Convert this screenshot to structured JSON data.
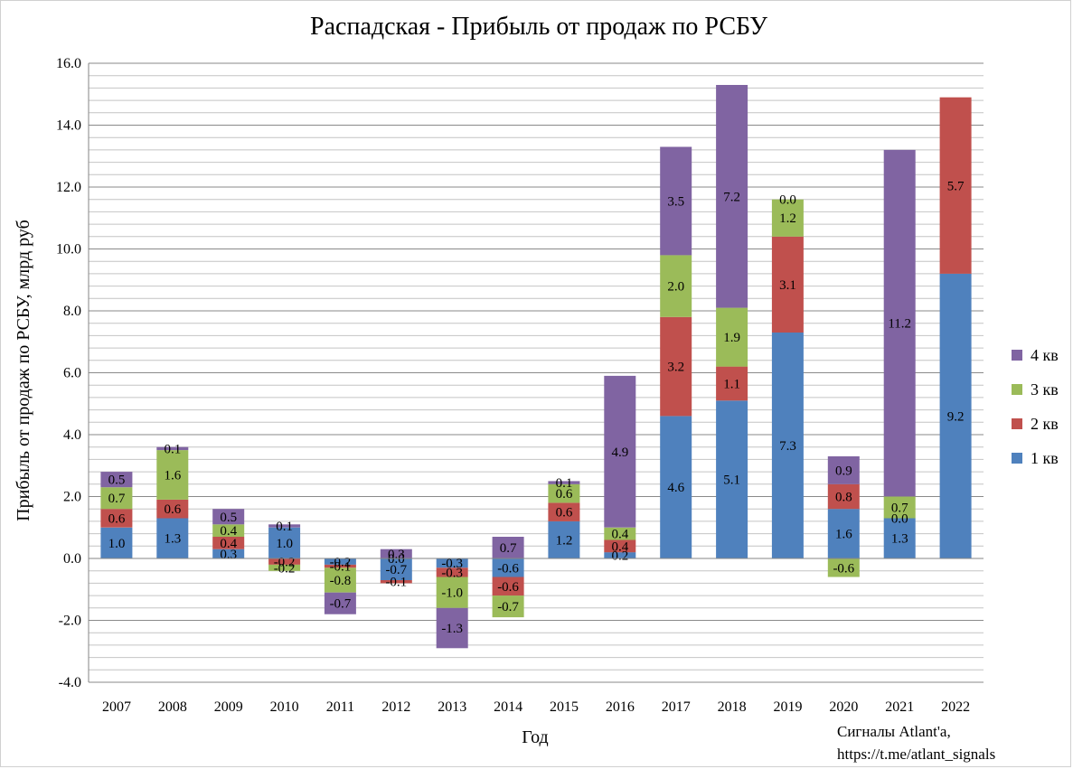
{
  "chart_data": {
    "type": "bar",
    "stacked": true,
    "title": "Распадская - Прибыль от продаж по РСБУ",
    "xlabel": "Год",
    "ylabel": "Прибыль от продаж по РСБУ, млрд руб",
    "ylim": [
      -4.0,
      16.0
    ],
    "y_major_ticks": [
      "-4.0",
      "-2.0",
      "0.0",
      "2.0",
      "4.0",
      "6.0",
      "8.0",
      "10.0",
      "12.0",
      "14.0",
      "16.0"
    ],
    "grid": true,
    "legend_position": "right",
    "categories": [
      "2007",
      "2008",
      "2009",
      "2010",
      "2011",
      "2012",
      "2013",
      "2014",
      "2015",
      "2016",
      "2017",
      "2018",
      "2019",
      "2020",
      "2021",
      "2022"
    ],
    "series": [
      {
        "name": "1 кв",
        "color": "#4f81bd",
        "values": [
          1.0,
          1.3,
          0.3,
          1.0,
          -0.2,
          -0.7,
          -0.3,
          -0.6,
          1.2,
          0.2,
          4.6,
          5.1,
          7.3,
          1.6,
          1.3,
          9.2
        ],
        "labels": [
          "1.0",
          "1.3",
          "0.3",
          "1.0",
          "-0.2",
          "-0.7",
          "-0.3",
          "-0.6",
          "1.2",
          "0.2",
          "4.6",
          "5.1",
          "7.3",
          "1.6",
          "1.3",
          "9.2"
        ]
      },
      {
        "name": "2 кв",
        "color": "#c0504d",
        "values": [
          0.6,
          0.6,
          0.4,
          -0.2,
          -0.1,
          -0.1,
          -0.3,
          -0.6,
          0.6,
          0.4,
          3.2,
          1.1,
          3.1,
          0.8,
          0.0,
          5.7
        ],
        "labels": [
          "0.6",
          "0.6",
          "0.4",
          "-0.2",
          "-0.1",
          "-0.1",
          "-0.3",
          "-0.6",
          "0.6",
          "0.4",
          "3.2",
          "1.1",
          "3.1",
          "0.8",
          "0.0",
          "5.7"
        ]
      },
      {
        "name": "3 кв",
        "color": "#9bbb59",
        "values": [
          0.7,
          1.6,
          0.4,
          -0.2,
          -0.8,
          0.0,
          -1.0,
          -0.7,
          0.6,
          0.4,
          2.0,
          1.9,
          1.2,
          -0.6,
          0.7,
          null
        ],
        "labels": [
          "0.7",
          "1.6",
          "0.4",
          "-0.2",
          "-0.8",
          "0.0",
          "-1.0",
          "-0.7",
          "0.6",
          "0.4",
          "2.0",
          "1.9",
          "1.2",
          "-0.6",
          "0.7",
          ""
        ]
      },
      {
        "name": "4 кв",
        "color": "#8064a2",
        "values": [
          0.5,
          0.1,
          0.5,
          0.1,
          -0.7,
          0.3,
          -1.3,
          0.7,
          0.1,
          4.9,
          3.5,
          7.2,
          0.0,
          0.9,
          11.2,
          null
        ],
        "labels": [
          "0.5",
          "0.1",
          "0.5",
          "0.1",
          "-0.7",
          "0.3",
          "-1.3",
          "0.7",
          "0.1",
          "4.9",
          "3.5",
          "7.2",
          "0.0",
          "0.9",
          "11.2",
          ""
        ]
      }
    ]
  },
  "credit": {
    "line1": "Сигналы Atlant'a,",
    "line2": "https://t.me/atlant_signals"
  }
}
